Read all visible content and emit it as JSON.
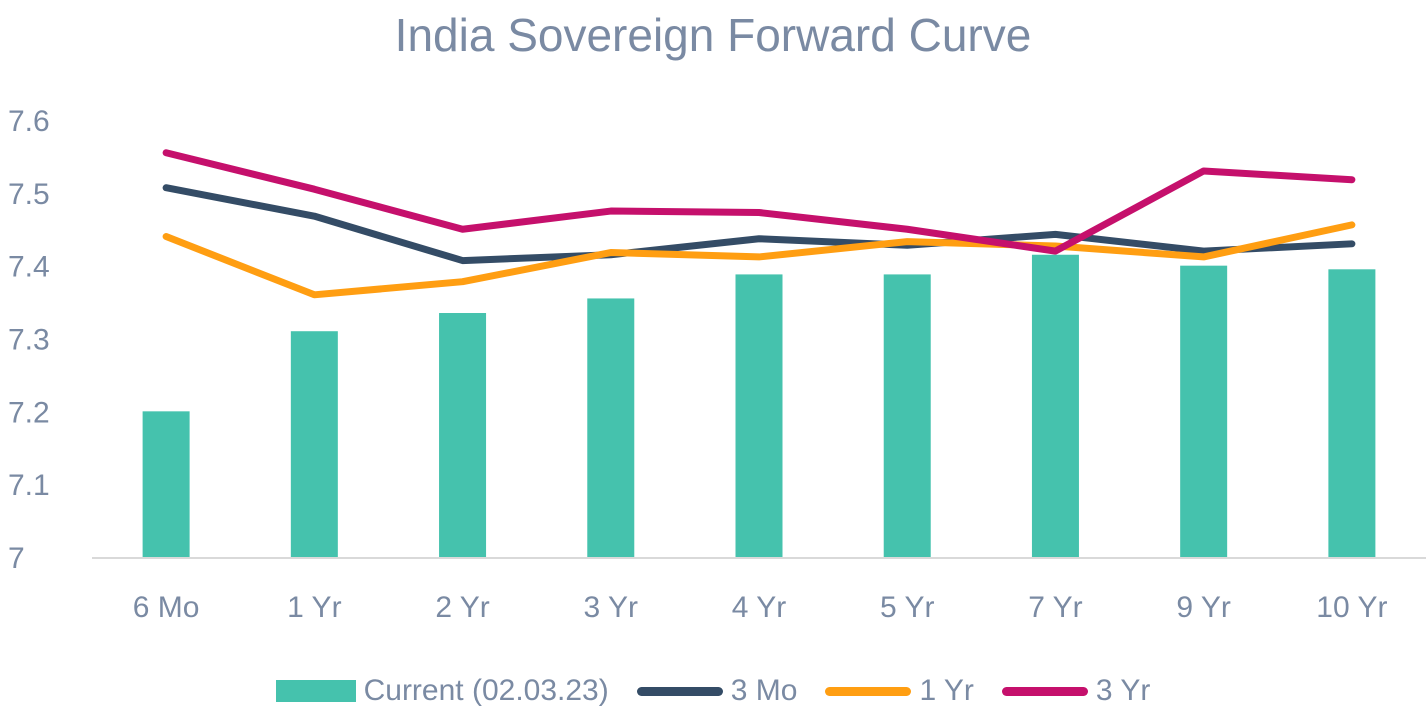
{
  "chart_data": {
    "type": "bar",
    "title": "India Sovereign Forward Curve",
    "categories": [
      "6 Mo",
      "1 Yr",
      "2 Yr",
      "3 Yr",
      "4 Yr",
      "5 Yr",
      "7 Yr",
      "9 Yr",
      "10 Yr"
    ],
    "ylim": [
      7,
      7.6
    ],
    "yticks": [
      "7",
      "7.1",
      "7.2",
      "7.3",
      "7.4",
      "7.5",
      "7.6"
    ],
    "grid": false,
    "legend_position": "bottom",
    "series": [
      {
        "name": "Current (02.03.23)",
        "type": "bar",
        "color": "#45c2ad",
        "values": [
          7.2,
          7.31,
          7.335,
          7.355,
          7.388,
          7.388,
          7.415,
          7.4,
          7.395
        ]
      },
      {
        "name": "3 Mo",
        "type": "line",
        "color": "#344c66",
        "values": [
          7.507,
          7.468,
          7.407,
          7.415,
          7.437,
          7.428,
          7.443,
          7.42,
          7.43
        ]
      },
      {
        "name": "1 Yr",
        "type": "line",
        "color": "#ff9e12",
        "values": [
          7.44,
          7.36,
          7.378,
          7.418,
          7.412,
          7.433,
          7.427,
          7.412,
          7.456
        ]
      },
      {
        "name": "3 Yr",
        "type": "line",
        "color": "#c5106c",
        "values": [
          7.555,
          7.505,
          7.45,
          7.475,
          7.473,
          7.45,
          7.42,
          7.53,
          7.518
        ]
      }
    ]
  }
}
